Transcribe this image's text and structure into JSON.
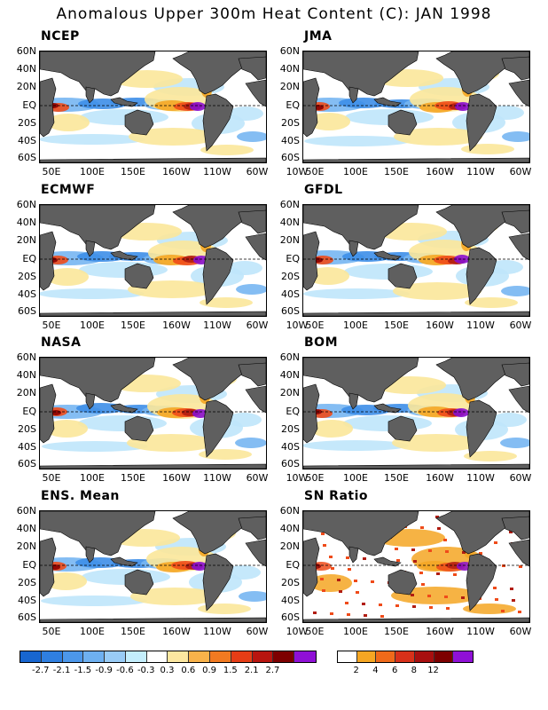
{
  "title": "Anomalous Upper 300m Heat Content (C): JAN 1998",
  "colors": {
    "land": "#5f5f5f",
    "neg3": "#1f6fd6",
    "neg2": "#3d8ee8",
    "neg1": "#77b6f2",
    "neg0": "#bfe6fb",
    "pos0": "#fbe79a",
    "pos1": "#f5a623",
    "pos2": "#ef4b1a",
    "pos3": "#b11d12",
    "pos4": "#8a0000",
    "pos5": "#8a0fcf"
  },
  "y_axis_labels": [
    "60N",
    "40N",
    "20N",
    "EQ",
    "20S",
    "40S",
    "60S"
  ],
  "x_axis_labels": [
    "50E",
    "100E",
    "150E",
    "160W",
    "110W",
    "60W",
    "10W"
  ],
  "panels": [
    {
      "name": "NCEP"
    },
    {
      "name": "JMA"
    },
    {
      "name": "ECMWF"
    },
    {
      "name": "GFDL"
    },
    {
      "name": "NASA"
    },
    {
      "name": "BOM"
    },
    {
      "name": "ENS. Mean"
    },
    {
      "name": "SN Ratio"
    }
  ],
  "anomaly_colorbar": {
    "labels": [
      "-2.7",
      "-2.1",
      "-1.5",
      "-0.9",
      "-0.6",
      "-0.3",
      "0.3",
      "0.6",
      "0.9",
      "1.5",
      "2.1",
      "2.7"
    ],
    "colors": [
      "#1866d0",
      "#2f7fe0",
      "#4c97ea",
      "#6eb0f0",
      "#99ccf6",
      "#c4eefc",
      "#ffffff",
      "#fce7a0",
      "#f8b24a",
      "#f27a21",
      "#e63d16",
      "#b8150f",
      "#7d0000",
      "#8f10d6"
    ]
  },
  "sn_colorbar": {
    "labels": [
      "2",
      "4",
      "6",
      "8",
      "12"
    ],
    "colors": [
      "#ffffff",
      "#f5a623",
      "#ef6a1a",
      "#d8311a",
      "#a80f0f",
      "#7d0000",
      "#8f10d6"
    ]
  }
}
